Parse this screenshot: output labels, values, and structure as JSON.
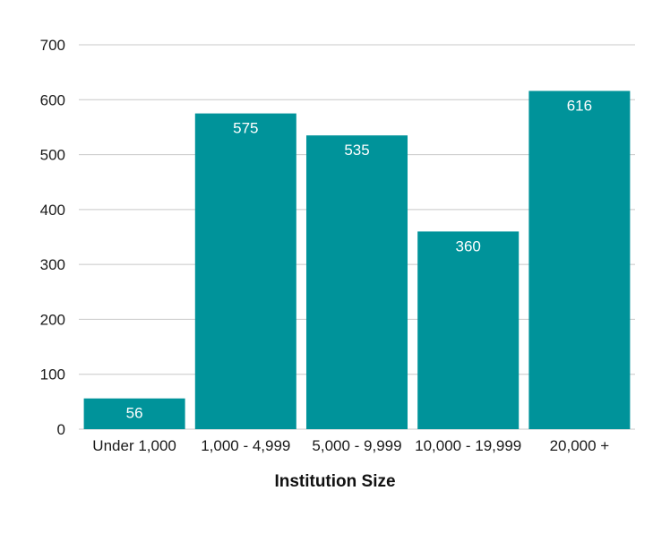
{
  "chart_data": {
    "type": "bar",
    "title": "",
    "xlabel": "Institution Size",
    "ylabel": "",
    "categories": [
      "Under 1,000",
      "1,000 - 4,999",
      "5,000 - 9,999",
      "10,000 - 19,999",
      "20,000 +"
    ],
    "values": [
      56,
      575,
      535,
      360,
      616
    ],
    "data_labels": [
      "56",
      "575",
      "535",
      "360",
      "616"
    ],
    "ylim": [
      0,
      700
    ],
    "yticks": [
      "0",
      "100",
      "200",
      "300",
      "400",
      "500",
      "600",
      "700"
    ],
    "grid": true,
    "legend": "none",
    "bar_color": "#00939a"
  }
}
